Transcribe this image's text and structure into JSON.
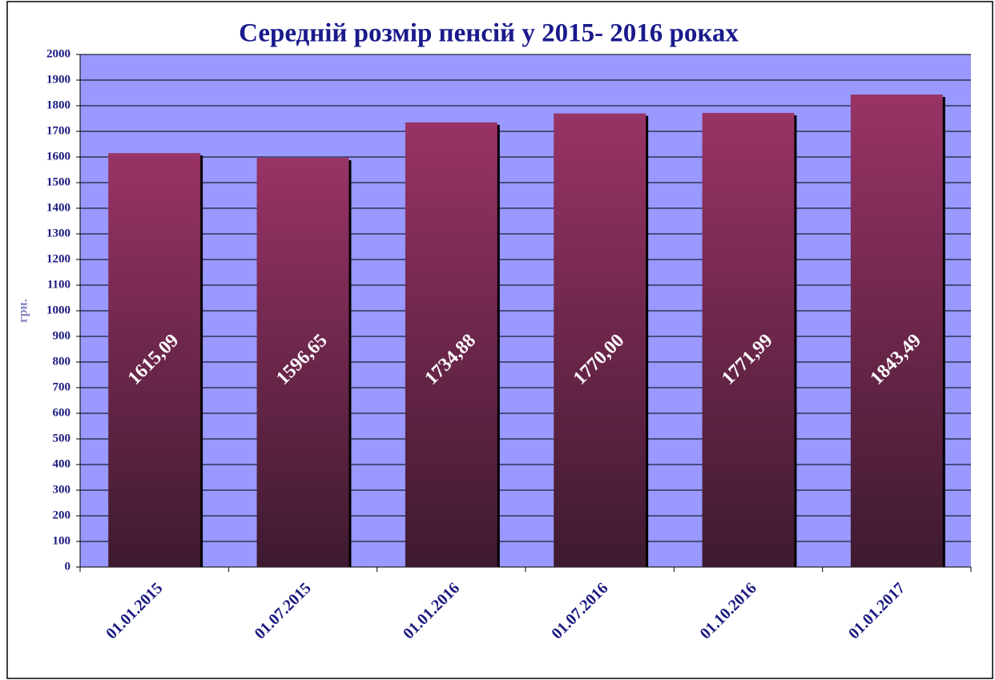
{
  "chart_data": {
    "type": "bar",
    "title": "Середній розмір пенсій у 2015- 2016 роках",
    "y_label": "грн.",
    "categories": [
      "01.01.2015",
      "01.07.2015",
      "01.01.2016",
      "01.07.2016",
      "01.10.2016",
      "01.01.2017"
    ],
    "values": [
      1615.09,
      1596.65,
      1734.88,
      1770.0,
      1771.99,
      1843.49
    ],
    "value_labels": [
      "1615,09",
      "1596,65",
      "1734,88",
      "1770,00",
      "1771,99",
      "1843,49"
    ],
    "color": "#993366",
    "ylim": [
      0,
      2000
    ],
    "yticks": [
      0,
      100,
      200,
      300,
      400,
      500,
      600,
      700,
      800,
      900,
      1000,
      1100,
      1200,
      1300,
      1400,
      1500,
      1600,
      1700,
      1800,
      1900,
      2000
    ],
    "grid": true
  }
}
